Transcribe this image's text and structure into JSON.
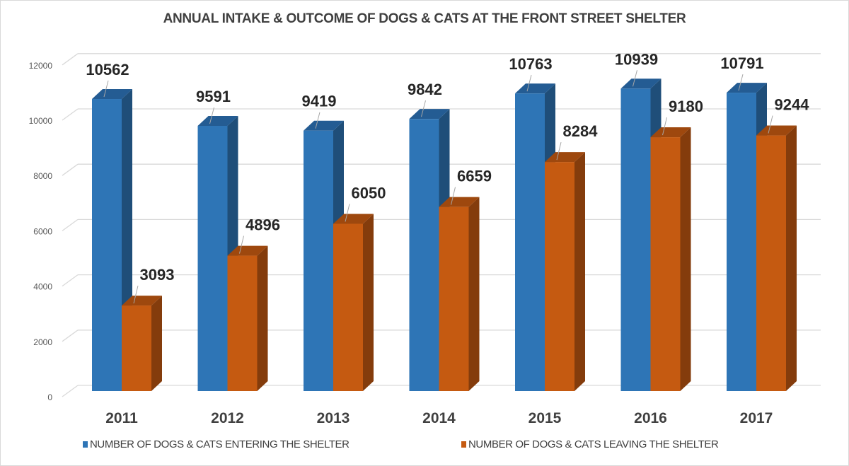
{
  "chart_data": {
    "type": "bar",
    "title": "ANNUAL INTAKE & OUTCOME OF DOGS & CATS AT THE FRONT STREET SHELTER",
    "xlabel": "",
    "ylabel": "",
    "categories": [
      "2011",
      "2012",
      "2013",
      "2014",
      "2015",
      "2016",
      "2017"
    ],
    "series": [
      {
        "name": "NUMBER OF DOGS & CATS ENTERING THE SHELTER",
        "color": "#2E75B6",
        "side_color": "#1F4E79",
        "top_color": "#245C93",
        "values": [
          10562,
          9591,
          9419,
          9842,
          10763,
          10939,
          10791
        ]
      },
      {
        "name": "NUMBER OF DOGS & CATS LEAVING THE SHELTER",
        "color": "#C55A11",
        "side_color": "#843C0C",
        "top_color": "#9E480E",
        "values": [
          3093,
          4896,
          6050,
          6659,
          8284,
          9180,
          9244
        ]
      }
    ],
    "ylim": [
      0,
      12000
    ],
    "yticks": [
      "0",
      "2000",
      "4000",
      "6000",
      "8000",
      "10000",
      "12000"
    ],
    "grid": true,
    "style": "3d-clustered-column",
    "data_labels": true,
    "legend": "bottom"
  }
}
